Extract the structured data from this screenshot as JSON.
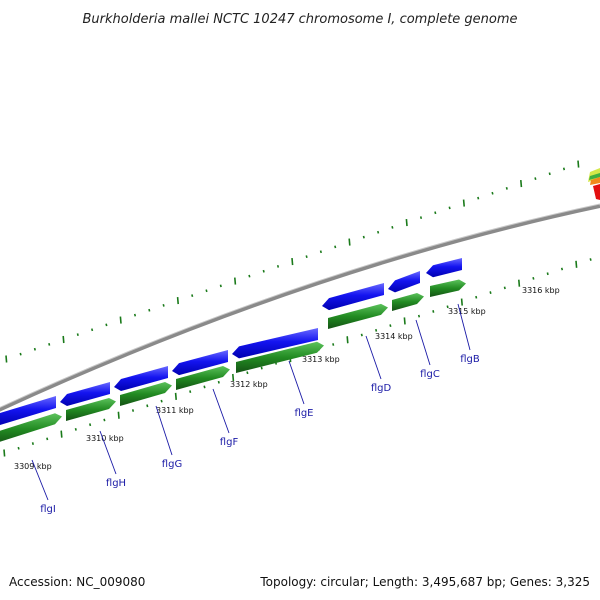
{
  "title": "Burkholderia mallei NCTC 10247 chromosome I, complete genome",
  "footer": {
    "accession": "Accession: NC_009080",
    "summary": "Topology: circular; Length: 3,495,687 bp; Genes: 3,325"
  },
  "colors": {
    "backbone": "#8a8a8a",
    "forward_genes": "#1010e0",
    "reverse_genes": "#1f8a1f",
    "ticks": "#1a7a1a",
    "gene_labels": "#1a1aa6"
  },
  "kbp_labels": [
    "3309 kbp",
    "3310 kbp",
    "3311 kbp",
    "3312 kbp",
    "3313 kbp",
    "3314 kbp",
    "3315 kbp",
    "3316 kbp"
  ],
  "genes": [
    "flgI",
    "flgH",
    "flgG",
    "flgF",
    "flgE",
    "flgD",
    "flgC",
    "flgB"
  ]
}
